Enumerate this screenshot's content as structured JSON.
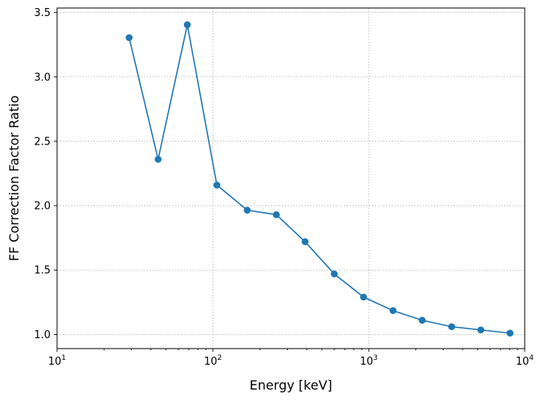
{
  "chart_data": {
    "type": "line",
    "x_scale": "log",
    "xlabel": "Energy [keV]",
    "ylabel": "FF Correction Factor Ratio",
    "xlim": [
      10,
      10000
    ],
    "ylim": [
      0.89,
      3.535
    ],
    "grid": true,
    "x_ticks": [
      {
        "value": 10,
        "base": "10",
        "exp": "1"
      },
      {
        "value": 100,
        "base": "10",
        "exp": "2"
      },
      {
        "value": 1000,
        "base": "10",
        "exp": "3"
      },
      {
        "value": 10000,
        "base": "10",
        "exp": "4"
      }
    ],
    "y_ticks": [
      {
        "value": 1.0,
        "label": "1.0"
      },
      {
        "value": 1.5,
        "label": "1.5"
      },
      {
        "value": 2.0,
        "label": "2.0"
      },
      {
        "value": 2.5,
        "label": "2.5"
      },
      {
        "value": 3.0,
        "label": "3.0"
      },
      {
        "value": 3.5,
        "label": "3.5"
      }
    ],
    "series": [
      {
        "color": "#1f77b4",
        "marker": "circle",
        "x": [
          29,
          44.5,
          68.5,
          106,
          166,
          255,
          390,
          600,
          925,
          1430,
          2200,
          3400,
          5230,
          8050
        ],
        "y": [
          3.305,
          2.36,
          3.405,
          2.16,
          1.965,
          1.93,
          1.72,
          1.47,
          1.29,
          1.185,
          1.11,
          1.06,
          1.035,
          1.01
        ]
      }
    ]
  }
}
